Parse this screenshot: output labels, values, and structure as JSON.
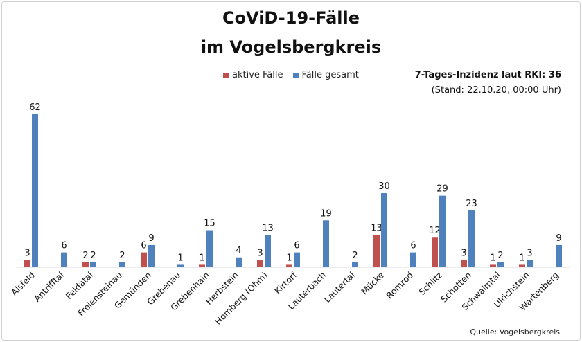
{
  "title_line1": "CoViD-19-Fälle",
  "title_line2": "im Vogelsbergkreis",
  "info_line1": "7-Tages-Inzidenz laut RKI: 36",
  "info_line2": "(Stand: 22.10.20, 00:00 Uhr)",
  "source": "Quelle: Vogelsbergkreis",
  "colors": {
    "active": "#c0504d",
    "total": "#4f81bd"
  },
  "chart_data": {
    "type": "bar",
    "legend_position": "top",
    "ylim": [
      0,
      62
    ],
    "categories": [
      "Alsfeld",
      "Antrifftal",
      "Feldatal",
      "Freiensteinau",
      "Gemünden",
      "Grebenau",
      "Grebenhain",
      "Herbstein",
      "Homberg (Ohm)",
      "Kirtorf",
      "Lauterbach",
      "Lautertal",
      "Mücke",
      "Romrod",
      "Schlitz",
      "Schotten",
      "Schwalmtal",
      "Ulrichstein",
      "Wartenberg"
    ],
    "series": [
      {
        "name": "aktive Fälle",
        "values": [
          3,
          null,
          2,
          null,
          6,
          null,
          1,
          null,
          3,
          1,
          null,
          null,
          13,
          null,
          12,
          3,
          1,
          1,
          null
        ]
      },
      {
        "name": "Fälle gesamt",
        "values": [
          62,
          6,
          2,
          2,
          9,
          1,
          15,
          4,
          13,
          6,
          19,
          2,
          30,
          6,
          29,
          23,
          2,
          3,
          9
        ]
      }
    ]
  }
}
